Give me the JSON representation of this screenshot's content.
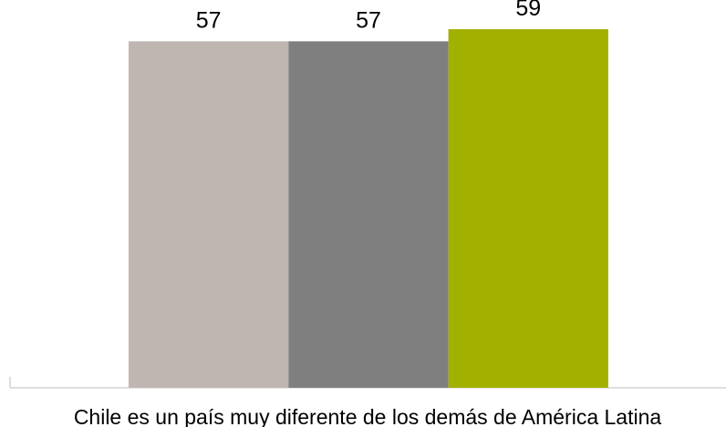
{
  "chart_data": {
    "type": "bar",
    "categories": [
      "Chile es un país muy diferente de los demás de América Latina"
    ],
    "series": [
      {
        "values": [
          57
        ],
        "color": "#bfb6b2"
      },
      {
        "values": [
          57
        ],
        "color": "#7f7f7f"
      },
      {
        "values": [
          59
        ],
        "color": "#a2b000"
      }
    ],
    "ylim": [
      0,
      63.8
    ],
    "grid": false,
    "legend": "none",
    "axis_color": "#bfbfbf"
  }
}
